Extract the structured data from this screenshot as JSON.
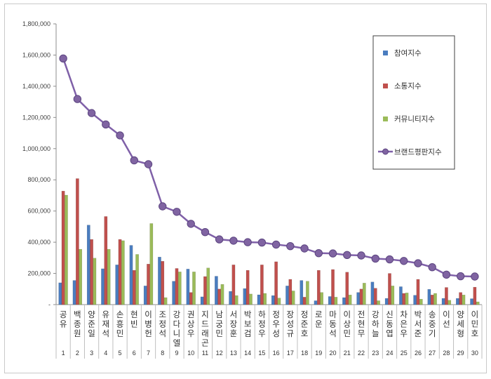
{
  "chart_data": {
    "type": "bar",
    "title": "",
    "xlabel": "",
    "ylabel": "",
    "ylim": [
      0,
      1800000
    ],
    "yticks": [
      0,
      200000,
      400000,
      600000,
      800000,
      1000000,
      1200000,
      1400000,
      1600000,
      1800000
    ],
    "ytick_labels": [
      "-",
      "200,000",
      "400,000",
      "600,000",
      "800,000",
      "1,000,000",
      "1,200,000",
      "1,400,000",
      "1,600,000",
      "1,800,000"
    ],
    "grid": false,
    "legend_position": "top-right",
    "ranks": [
      "1",
      "2",
      "3",
      "4",
      "5",
      "6",
      "7",
      "8",
      "9",
      "10",
      "11",
      "12",
      "13",
      "14",
      "15",
      "16",
      "17",
      "18",
      "19",
      "20",
      "21",
      "22",
      "23",
      "24",
      "25",
      "26",
      "27",
      "28",
      "29",
      "30"
    ],
    "categories": [
      "공유",
      "백종원",
      "양준일",
      "유재석",
      "손흥민",
      "현빈",
      "이병헌",
      "조정석",
      "강다니엘",
      "권상우",
      "지드래곤",
      "남궁민",
      "서장훈",
      "박보검",
      "하정우",
      "정우성",
      "장성규",
      "정준호",
      "로운",
      "마동석",
      "이상민",
      "전현무",
      "강하늘",
      "신동엽",
      "차은우",
      "박서준",
      "송중기",
      "이선",
      "양세형",
      "이민호"
    ],
    "series": [
      {
        "name": "참여지수",
        "type": "bar",
        "color": "#4a7dbf",
        "values": [
          140000,
          155000,
          510000,
          230000,
          255000,
          380000,
          120000,
          305000,
          150000,
          228000,
          50000,
          182000,
          85000,
          103000,
          63000,
          58000,
          120000,
          155000,
          25000,
          52000,
          45000,
          78000,
          145000,
          40000,
          115000,
          60000,
          98000,
          40000,
          40000,
          38000
        ]
      },
      {
        "name": "소통지수",
        "type": "bar",
        "color": "#c0504d",
        "values": [
          728000,
          808000,
          418000,
          565000,
          418000,
          220000,
          260000,
          278000,
          232000,
          78000,
          180000,
          100000,
          255000,
          220000,
          255000,
          275000,
          162000,
          48000,
          220000,
          225000,
          208000,
          100000,
          105000,
          200000,
          72000,
          162000,
          62000,
          110000,
          78000,
          112000
        ]
      },
      {
        "name": "커뮤니티지수",
        "type": "bar",
        "color": "#9bbb59",
        "values": [
          702000,
          355000,
          298000,
          355000,
          410000,
          322000,
          520000,
          45000,
          210000,
          210000,
          235000,
          130000,
          58000,
          68000,
          72000,
          42000,
          88000,
          150000,
          78000,
          48000,
          62000,
          138000,
          25000,
          120000,
          75000,
          35000,
          72000,
          28000,
          62000,
          18000
        ]
      },
      {
        "name": "브랜드평판지수",
        "type": "line",
        "color": "#7f60a8",
        "values": [
          1578000,
          1318000,
          1228000,
          1155000,
          1085000,
          925000,
          900000,
          630000,
          595000,
          518000,
          465000,
          418000,
          410000,
          400000,
          398000,
          385000,
          375000,
          360000,
          330000,
          328000,
          318000,
          315000,
          295000,
          290000,
          280000,
          265000,
          240000,
          192000,
          182000,
          180000
        ]
      }
    ]
  }
}
